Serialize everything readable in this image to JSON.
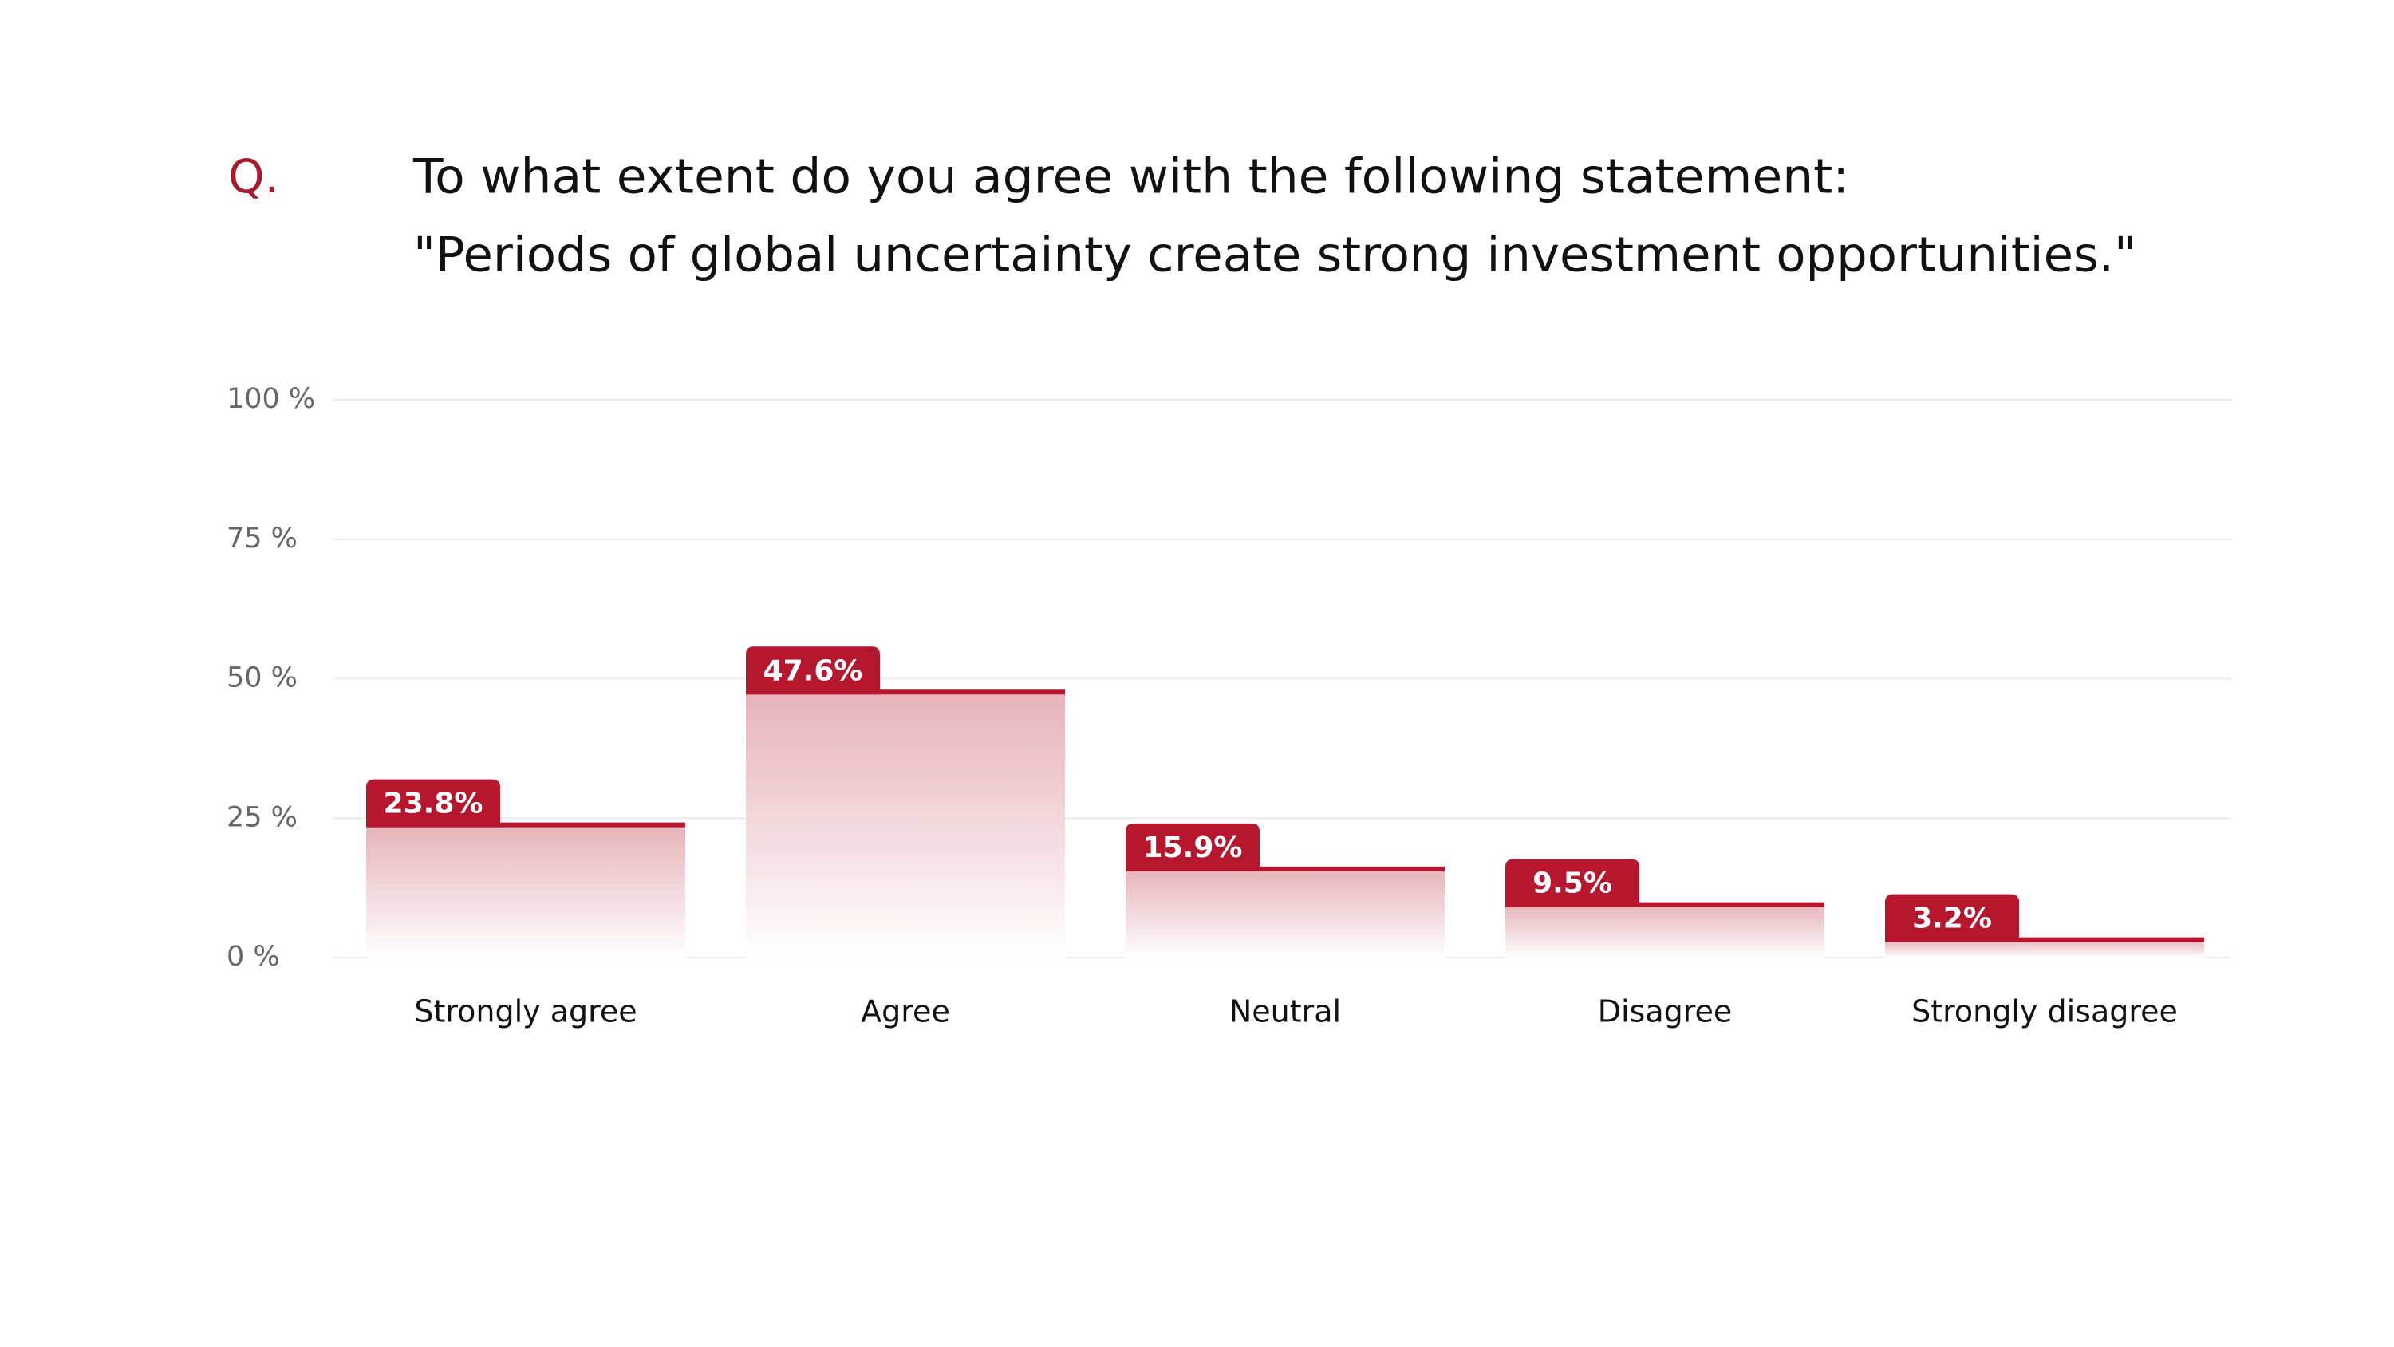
{
  "chart_data": {
    "type": "bar",
    "marker": "Q.",
    "title": "To what extent do you agree with the following statement:",
    "subtitle": "\"Periods of global uncertainty create strong investment opportunities.\"",
    "categories": [
      "Strongly agree",
      "Agree",
      "Neutral",
      "Disagree",
      "Strongly disagree"
    ],
    "values": [
      23.8,
      47.6,
      15.9,
      9.5,
      3.2
    ],
    "value_labels": [
      "23.8%",
      "47.6%",
      "15.9%",
      "9.5%",
      "3.2%"
    ],
    "color": "#b5172f",
    "ylim": [
      0,
      100
    ],
    "yticks": [
      {
        "value": 0,
        "label": "0 %"
      },
      {
        "value": 25,
        "label": "25 %"
      },
      {
        "value": 50,
        "label": "50 %"
      },
      {
        "value": 75,
        "label": "75 %"
      },
      {
        "value": 100,
        "label": "100 %"
      }
    ],
    "grid": true
  }
}
